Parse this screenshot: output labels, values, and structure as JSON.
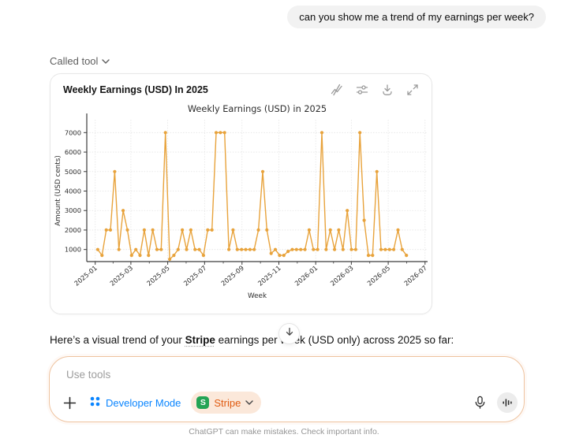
{
  "user_message": "can you show me a trend of my earnings per week?",
  "called_tool": {
    "label": "Called tool"
  },
  "chart_card": {
    "title": "Weekly Earnings (USD) In 2025",
    "toolbar_icons": [
      "interactive-chart",
      "customize-sliders",
      "download",
      "expand"
    ]
  },
  "chart_data": {
    "type": "line",
    "title": "Weekly Earnings (USD) in 2025",
    "xlabel": "Week",
    "ylabel": "Amount (USD cents)",
    "x_tick_labels": [
      "2025-01",
      "2025-03",
      "2025-05",
      "2025-07",
      "2025-09",
      "2025-11",
      "2026-01",
      "2026-03",
      "2026-05",
      "2026-07"
    ],
    "x_tick_weeks": [
      0,
      8.43,
      17.14,
      25.86,
      34.71,
      43.43,
      52.14,
      60.57,
      69.29,
      78
    ],
    "y_ticks": [
      1000,
      2000,
      3000,
      4000,
      5000,
      6000,
      7000
    ],
    "ylim": [
      380,
      7660
    ],
    "first_point_week_offset": 0.6,
    "week_interval": 1,
    "values": [
      1000,
      700,
      2000,
      2000,
      5000,
      1000,
      3000,
      2000,
      700,
      1000,
      700,
      2000,
      700,
      2000,
      1000,
      1000,
      7000,
      500,
      700,
      1000,
      2000,
      1000,
      2000,
      1000,
      1000,
      700,
      2000,
      2000,
      7000,
      7000,
      7000,
      1000,
      2000,
      1000,
      1000,
      1000,
      1000,
      1000,
      2000,
      5000,
      2000,
      800,
      1000,
      700,
      700,
      900,
      1000,
      1000,
      1000,
      1000,
      2000,
      1000,
      1000,
      7000,
      1000,
      2000,
      1000,
      2000,
      1000,
      3000,
      1000,
      1000,
      7000,
      2500,
      700,
      700,
      5000,
      1000,
      1000,
      1000,
      1000,
      2000,
      1000,
      700
    ],
    "line_color": "#E8A33C",
    "grid": true,
    "marker": "circle",
    "legend": "none"
  },
  "assistant_text": {
    "before": "Here’s a visual trend of your ",
    "bold": "Stripe",
    "after": " earnings per week (USD only) across 2025 so far:"
  },
  "scroll_button": {
    "icon": "arrow-down"
  },
  "composer": {
    "placeholder": "Use tools",
    "developer_mode_label": "Developer Mode",
    "stripe_label": "Stripe",
    "stripe_badge_letter": "S"
  },
  "footer": "ChatGPT can make mistakes. Check important info.",
  "colors": {
    "accent_blue": "#0a85ff",
    "stripe_orange": "#e05b11",
    "stripe_pill_bg": "#fbe8da",
    "stripe_badge_green": "#23a455",
    "chart_line": "#E8A33C",
    "composer_border": "#eec39f",
    "bubble_bg": "#f2f2f2"
  }
}
